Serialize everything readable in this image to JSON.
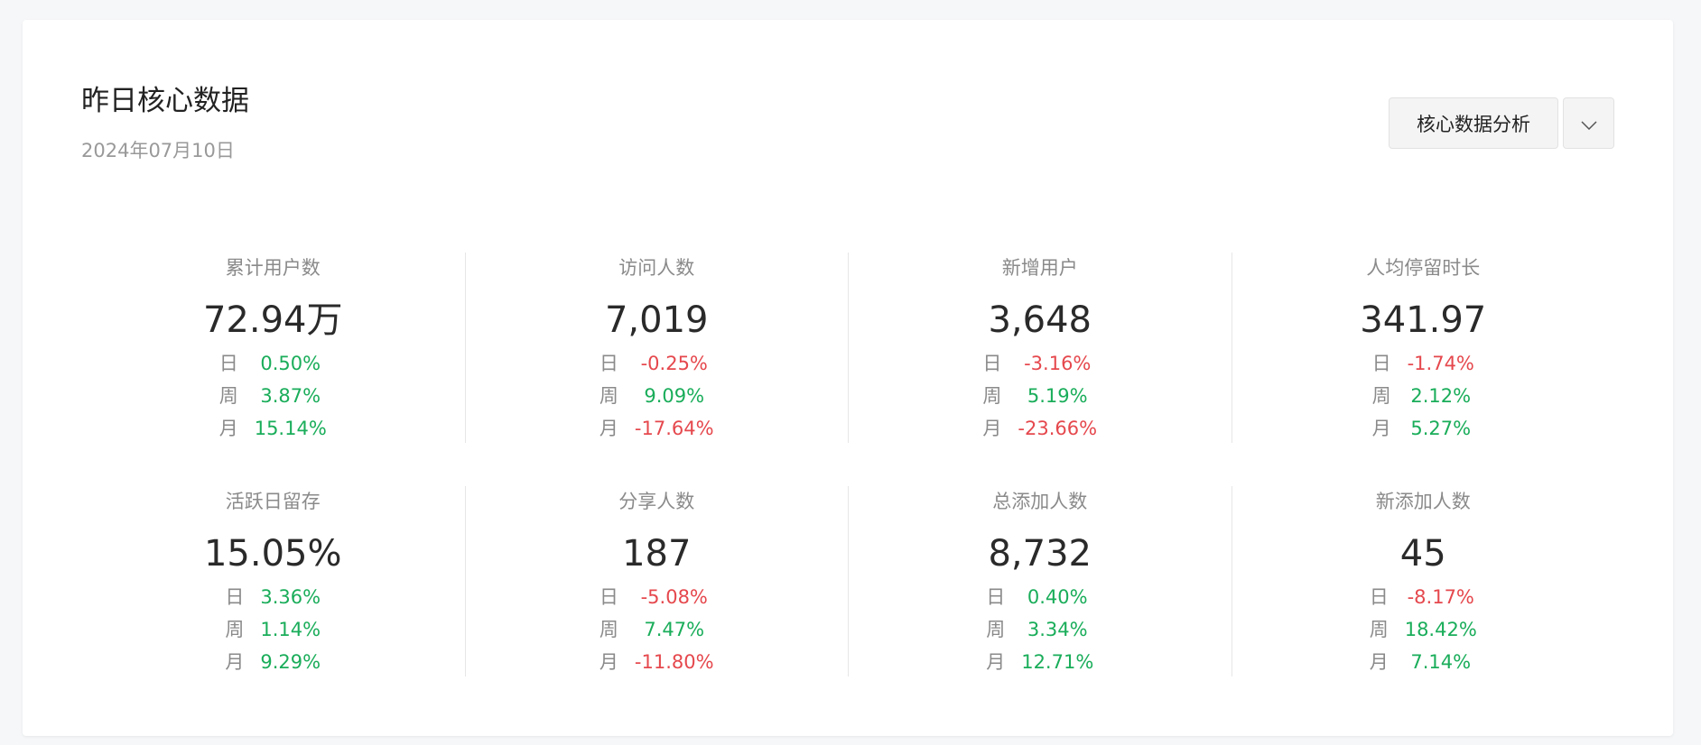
{
  "header": {
    "title": "昨日核心数据",
    "date": "2024年07月10日"
  },
  "actions": {
    "analysis_label": "核心数据分析",
    "dropdown_icon": "chevron-down-icon"
  },
  "colors": {
    "up": "#1aad5a",
    "down": "#e5484d"
  },
  "metrics": [
    {
      "label": "累计用户数",
      "value": "72.94万",
      "changes": [
        {
          "period": "日",
          "value": "0.50%",
          "trend": "up"
        },
        {
          "period": "周",
          "value": "3.87%",
          "trend": "up"
        },
        {
          "period": "月",
          "value": "15.14%",
          "trend": "up"
        }
      ]
    },
    {
      "label": "访问人数",
      "value": "7,019",
      "changes": [
        {
          "period": "日",
          "value": "-0.25%",
          "trend": "down"
        },
        {
          "period": "周",
          "value": "9.09%",
          "trend": "up"
        },
        {
          "period": "月",
          "value": "-17.64%",
          "trend": "down"
        }
      ]
    },
    {
      "label": "新增用户",
      "value": "3,648",
      "changes": [
        {
          "period": "日",
          "value": "-3.16%",
          "trend": "down"
        },
        {
          "period": "周",
          "value": "5.19%",
          "trend": "up"
        },
        {
          "period": "月",
          "value": "-23.66%",
          "trend": "down"
        }
      ]
    },
    {
      "label": "人均停留时长",
      "value": "341.97",
      "changes": [
        {
          "period": "日",
          "value": "-1.74%",
          "trend": "down"
        },
        {
          "period": "周",
          "value": "2.12%",
          "trend": "up"
        },
        {
          "period": "月",
          "value": "5.27%",
          "trend": "up"
        }
      ]
    },
    {
      "label": "活跃日留存",
      "value": "15.05%",
      "changes": [
        {
          "period": "日",
          "value": "3.36%",
          "trend": "up"
        },
        {
          "period": "周",
          "value": "1.14%",
          "trend": "up"
        },
        {
          "period": "月",
          "value": "9.29%",
          "trend": "up"
        }
      ]
    },
    {
      "label": "分享人数",
      "value": "187",
      "changes": [
        {
          "period": "日",
          "value": "-5.08%",
          "trend": "down"
        },
        {
          "period": "周",
          "value": "7.47%",
          "trend": "up"
        },
        {
          "period": "月",
          "value": "-11.80%",
          "trend": "down"
        }
      ]
    },
    {
      "label": "总添加人数",
      "value": "8,732",
      "changes": [
        {
          "period": "日",
          "value": "0.40%",
          "trend": "up"
        },
        {
          "period": "周",
          "value": "3.34%",
          "trend": "up"
        },
        {
          "period": "月",
          "value": "12.71%",
          "trend": "up"
        }
      ]
    },
    {
      "label": "新添加人数",
      "value": "45",
      "changes": [
        {
          "period": "日",
          "value": "-8.17%",
          "trend": "down"
        },
        {
          "period": "周",
          "value": "18.42%",
          "trend": "up"
        },
        {
          "period": "月",
          "value": "7.14%",
          "trend": "up"
        }
      ]
    }
  ]
}
